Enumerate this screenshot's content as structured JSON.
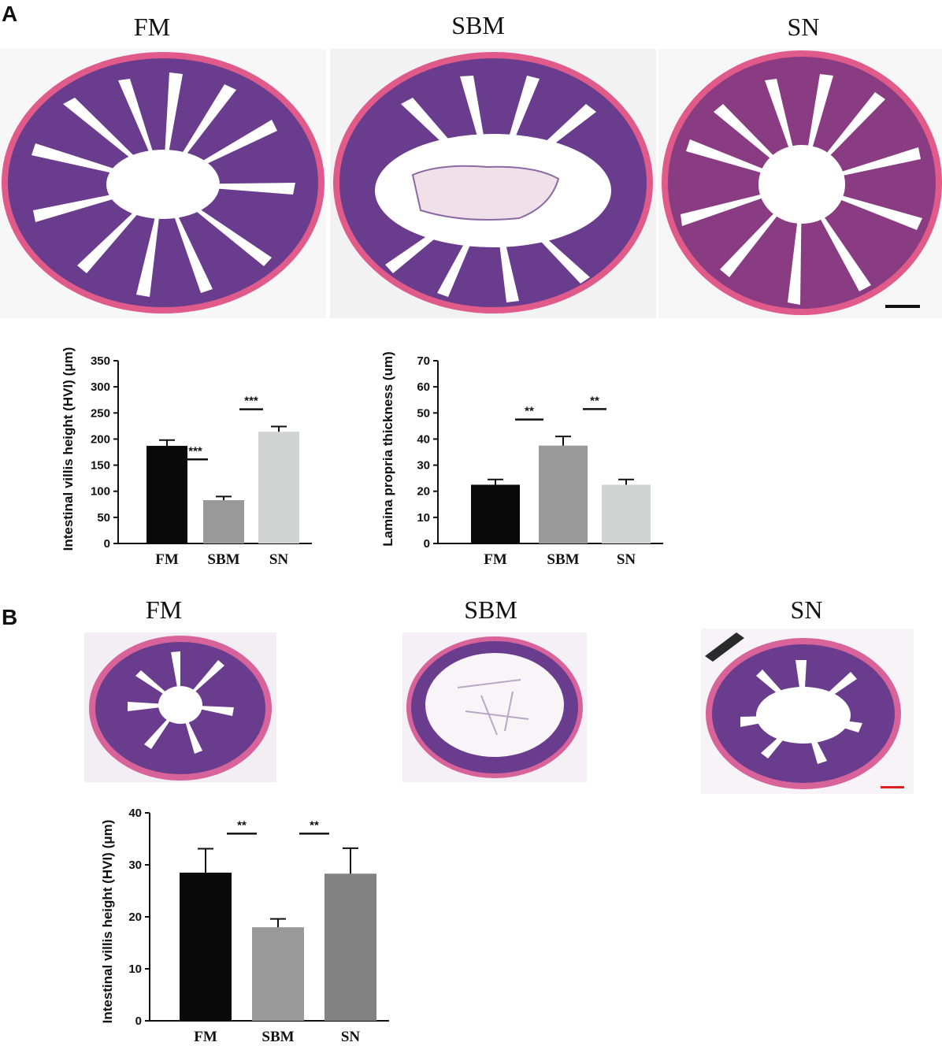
{
  "panels": {
    "a": {
      "letter": "A",
      "image_labels": [
        "FM",
        "SBM",
        "SN"
      ]
    },
    "b": {
      "letter": "B",
      "image_labels": [
        "FM",
        "SBM",
        "SN"
      ]
    }
  },
  "colors": {
    "eosin_pink": "#e05a8a",
    "hematoxylin_purple": "#6a3c8e",
    "lumen_white": "#ffffff",
    "bar_black": "#0a0a0a",
    "bar_gray": "#9a9a9a",
    "bar_light": "#d2d3d3",
    "bar_mid": "#828282",
    "scale_bar_black": "#111111",
    "scale_bar_red": "#e02020"
  },
  "chart_data": [
    {
      "type": "bar",
      "categories": [
        "FM",
        "SBM",
        "SN"
      ],
      "values": [
        187,
        83,
        214
      ],
      "errors": [
        11,
        7,
        10
      ],
      "colors": [
        "#0a0a0a",
        "#9a9a9a",
        "#d2d3d3"
      ],
      "ylabel": "Intestinal villis height (HVI) (μm)",
      "ylim": [
        0,
        350
      ],
      "yticks": [
        0,
        50,
        100,
        150,
        200,
        250,
        300,
        350
      ],
      "significance": [
        {
          "from": 0,
          "to": 1,
          "label": "***",
          "y": 161
        },
        {
          "from": 1,
          "to": 2,
          "label": "***",
          "y": 257
        }
      ]
    },
    {
      "type": "bar",
      "categories": [
        "FM",
        "SBM",
        "SN"
      ],
      "values": [
        22.5,
        37.5,
        22.5
      ],
      "errors": [
        2,
        3.5,
        2
      ],
      "colors": [
        "#0a0a0a",
        "#9a9a9a",
        "#d2d3d3"
      ],
      "ylabel": "Lamina propria thickness (um)",
      "ylim": [
        0,
        70
      ],
      "yticks": [
        0,
        10,
        20,
        30,
        40,
        50,
        60,
        70
      ],
      "significance": [
        {
          "from": 0,
          "to": 1,
          "label": "**",
          "y": 47.5
        },
        {
          "from": 1,
          "to": 2,
          "label": "**",
          "y": 51.5
        }
      ]
    },
    {
      "type": "bar",
      "categories": [
        "FM",
        "SBM",
        "SN"
      ],
      "values": [
        28.5,
        18,
        28.3
      ],
      "errors": [
        4.6,
        1.6,
        4.9
      ],
      "colors": [
        "#0a0a0a",
        "#9a9a9a",
        "#828282"
      ],
      "ylabel": "Intestinal villis height (HVI) (μm)",
      "ylim": [
        0,
        40
      ],
      "yticks": [
        0,
        10,
        20,
        30,
        40
      ],
      "significance": [
        {
          "from": 0,
          "to": 1,
          "label": "**",
          "y": 36
        },
        {
          "from": 1,
          "to": 2,
          "label": "**",
          "y": 36
        }
      ]
    }
  ]
}
